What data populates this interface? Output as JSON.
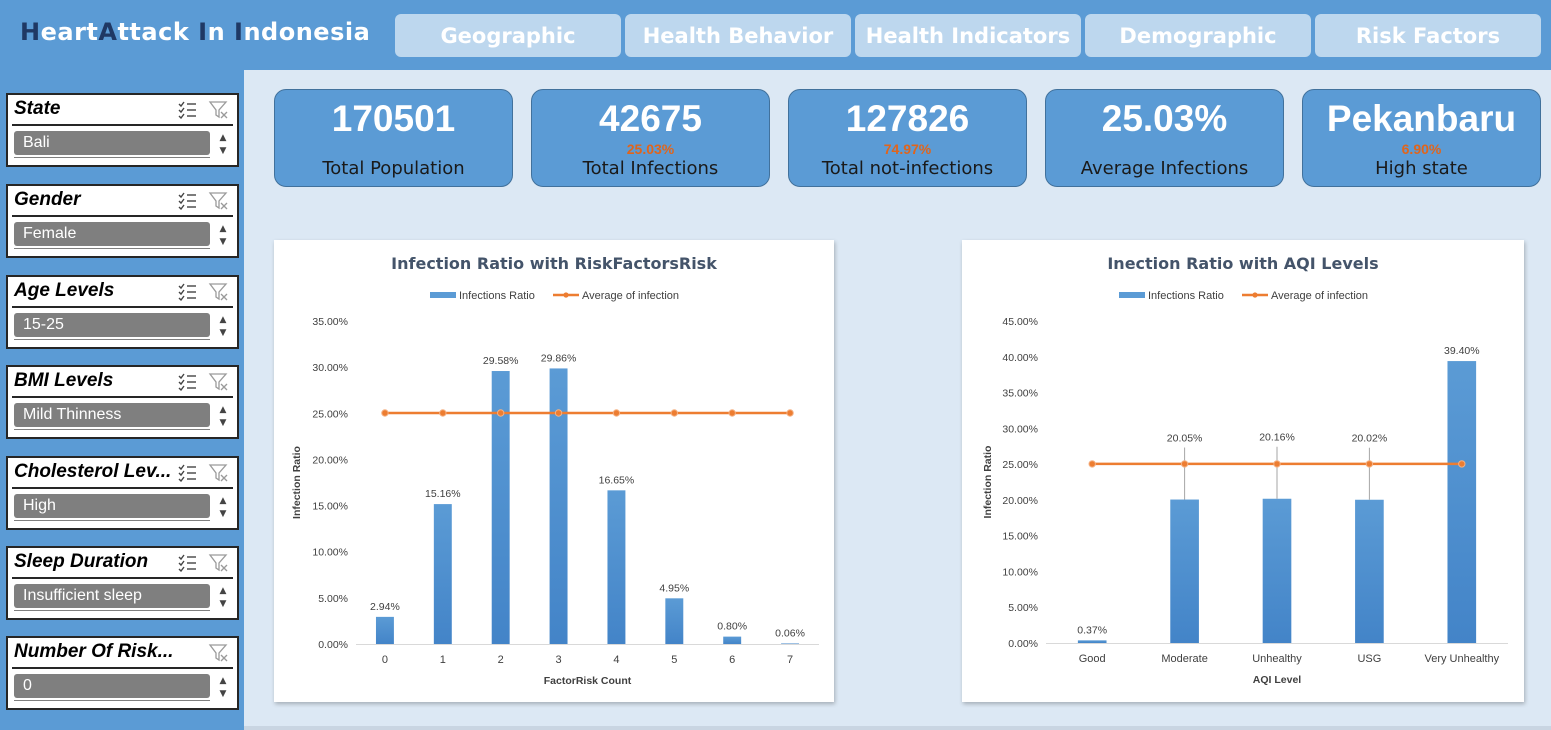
{
  "app": {
    "title_parts": [
      {
        "text": "H",
        "dark": true
      },
      {
        "text": "eart",
        "dark": false
      },
      {
        "text": "A",
        "dark": true
      },
      {
        "text": "ttack ",
        "dark": false
      },
      {
        "text": "I",
        "dark": true
      },
      {
        "text": "n ",
        "dark": false
      },
      {
        "text": "I",
        "dark": true
      },
      {
        "text": "ndonesia",
        "dark": false
      }
    ]
  },
  "tabs": [
    "Geographic",
    "Health Behavior",
    "Health Indicators",
    "Demographic",
    "Risk Factors"
  ],
  "slicers": [
    {
      "title": "State",
      "selected": "Bali",
      "multiselect": true
    },
    {
      "title": "Gender",
      "selected": "Female",
      "multiselect": true
    },
    {
      "title": "Age Levels",
      "selected": "15-25",
      "multiselect": true
    },
    {
      "title": "BMI Levels",
      "selected": "Mild Thinness",
      "multiselect": true
    },
    {
      "title": "Cholesterol Lev...",
      "selected": "High",
      "multiselect": true
    },
    {
      "title": "Sleep Duration",
      "selected": "Insufficient sleep",
      "multiselect": true
    },
    {
      "title": "Number Of Risk...",
      "selected": "0",
      "multiselect": false
    }
  ],
  "kpis": [
    {
      "value": "170501",
      "sub": "",
      "label": "Total Population"
    },
    {
      "value": "42675",
      "sub": "25.03%",
      "label": "Total Infections"
    },
    {
      "value": "127826",
      "sub": "74.97%",
      "label": "Total not-infections"
    },
    {
      "value": "25.03%",
      "sub": "",
      "label": "Average Infections"
    },
    {
      "value": "Pekanbaru",
      "sub": "6.90%",
      "label": "High state"
    }
  ],
  "colors": {
    "accent": "#5b9bd5",
    "bar": "#5b9bd5",
    "bar_dark": "#4384c8",
    "line": "#ed7d31",
    "kpi_highlight": "#e0651c",
    "title_dark": "#1f3864"
  },
  "icons": {
    "multiselect": "multi-select-icon",
    "clear_filter": "clear-filter-icon"
  },
  "chart_data": [
    {
      "type": "bar",
      "title": "Infection Ratio with RiskFactorsRisk",
      "xlabel": "FactorRisk Count",
      "ylabel": "Infection Ratio",
      "categories": [
        "0",
        "1",
        "2",
        "3",
        "4",
        "5",
        "6",
        "7"
      ],
      "series": [
        {
          "name": "Infections Ratio",
          "kind": "bar",
          "values": [
            2.94,
            15.16,
            29.58,
            29.86,
            16.65,
            4.95,
            0.8,
            0.06
          ],
          "labels": [
            "2.94%",
            "15.16%",
            "29.58%",
            "29.86%",
            "16.65%",
            "4.95%",
            "0.80%",
            "0.06%"
          ]
        },
        {
          "name": "Average of infection",
          "kind": "line",
          "values": [
            25.03,
            25.03,
            25.03,
            25.03,
            25.03,
            25.03,
            25.03,
            25.03
          ]
        }
      ],
      "ylim": [
        0,
        35
      ],
      "yticks": [
        "0.00%",
        "5.00%",
        "10.00%",
        "15.00%",
        "20.00%",
        "25.00%",
        "30.00%",
        "35.00%"
      ],
      "legend": "top",
      "grid": false
    },
    {
      "type": "bar",
      "title": "Inection Ratio with AQI Levels",
      "xlabel": "AQI Level",
      "ylabel": "Infection Ratio",
      "categories": [
        "Good",
        "Moderate",
        "Unhealthy",
        "USG",
        "Very Unhealthy"
      ],
      "series": [
        {
          "name": "Infections Ratio",
          "kind": "bar",
          "values": [
            0.37,
            20.05,
            20.16,
            20.02,
            39.4
          ],
          "labels": [
            "0.37%",
            "20.05%",
            "20.16%",
            "20.02%",
            "39.40%"
          ]
        },
        {
          "name": "Average of infection",
          "kind": "line",
          "values": [
            25.03,
            25.03,
            25.03,
            25.03,
            25.03
          ]
        }
      ],
      "ylim": [
        0,
        45
      ],
      "yticks": [
        "0.00%",
        "5.00%",
        "10.00%",
        "15.00%",
        "20.00%",
        "25.00%",
        "30.00%",
        "35.00%",
        "40.00%",
        "45.00%"
      ],
      "legend": "top",
      "grid": false
    }
  ]
}
